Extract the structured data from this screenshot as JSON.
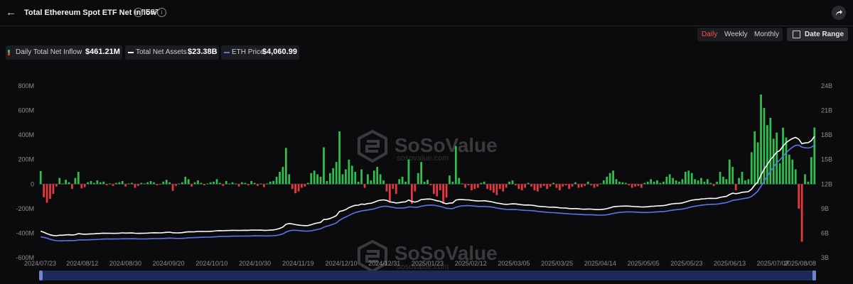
{
  "header": {
    "back_icon": "arrow-left-icon",
    "title": "Total Ethereum Spot ETF Net Inflow",
    "timezone": "EST",
    "info_icon": "info-icon",
    "share_icon": "share-icon"
  },
  "controls": {
    "periods": [
      "Daily",
      "Weekly",
      "Monthly"
    ],
    "active_period": "Daily",
    "date_range_label": "Date Range",
    "calendar_icon": "calendar-icon"
  },
  "legend": [
    {
      "label": "Daily Total Net Inflow",
      "value": "$461.21M"
    },
    {
      "label": "Total Net Assets",
      "value": "$23.38B"
    },
    {
      "label": "ETH Price",
      "value": "$4,060.99"
    }
  ],
  "colors": {
    "inflow_positive": "#2fbf4f",
    "inflow_negative": "#e8383d",
    "net_assets": "#ffffff",
    "eth_price": "#5b74e8",
    "active_tab": "#ff4d4f"
  },
  "chart_data": {
    "type": "bar",
    "title": "Total Ethereum Spot ETF Net Inflow",
    "x_ticks": [
      "2024/07/23",
      "2024/08/12",
      "2024/08/30",
      "2024/09/20",
      "2024/10/10",
      "2024/10/30",
      "2024/11/19",
      "2024/12/10",
      "2024/12/31",
      "2025/01/23",
      "2025/02/12",
      "2025/03/05",
      "2025/03/25",
      "2025/04/14",
      "2025/05/05",
      "2025/05/23",
      "2025/06/13",
      "2025/07/07",
      "2025/08/08"
    ],
    "y_left_ticks": [
      "800M",
      "600M",
      "400M",
      "200M",
      "0",
      "-200M",
      "-400M",
      "-600M"
    ],
    "y_left_range": [
      -600,
      800
    ],
    "y_left_unit": "M",
    "y_right_ticks": [
      "24B",
      "21B",
      "18B",
      "15B",
      "12B",
      "9B",
      "6B",
      "3B"
    ],
    "y_right_range": [
      3,
      24
    ],
    "y_right_unit": "B",
    "grid": false,
    "legend_position": "top-left",
    "watermark": "SoSoValue",
    "watermark_url": "sosovalue.com",
    "inflow_bars_millions": [
      106,
      -107,
      -152,
      -120,
      -80,
      -20,
      50,
      5,
      35,
      15,
      -40,
      50,
      100,
      -35,
      -25,
      15,
      25,
      10,
      30,
      15,
      20,
      -10,
      5,
      -15,
      10,
      15,
      25,
      -20,
      5,
      10,
      -30,
      -15,
      10,
      5,
      15,
      25,
      15,
      -10,
      -5,
      20,
      35,
      15,
      -55,
      -15,
      5,
      15,
      60,
      40,
      -20,
      15,
      30,
      10,
      -10,
      5,
      15,
      20,
      40,
      10,
      -15,
      25,
      5,
      15,
      5,
      -20,
      15,
      10,
      -10,
      25,
      10,
      -15,
      5,
      -25,
      5,
      20,
      25,
      60,
      100,
      140,
      295,
      80,
      -40,
      -75,
      -60,
      -30,
      -20,
      10,
      90,
      110,
      80,
      60,
      300,
      25,
      90,
      130,
      180,
      430,
      80,
      120,
      200,
      150,
      100,
      20,
      120,
      -30,
      80,
      30,
      110,
      140,
      80,
      30,
      -60,
      -150,
      -40,
      -80,
      40,
      60,
      20,
      200,
      -160,
      -60,
      90,
      180,
      20,
      35,
      -10,
      -80,
      -100,
      -50,
      -160,
      -110,
      70,
      20,
      310,
      50,
      5,
      -30,
      -10,
      -50,
      -40,
      -30,
      10,
      20,
      -40,
      -50,
      -70,
      -90,
      -40,
      -60,
      -30,
      20,
      30,
      -10,
      -40,
      -50,
      -30,
      10,
      -20,
      -50,
      -60,
      -30,
      -15,
      -40,
      -20,
      10,
      -30,
      -50,
      -20,
      -10,
      -40,
      -20,
      15,
      -30,
      -25,
      -15,
      20,
      -10,
      -30,
      -20,
      5,
      30,
      60,
      90,
      110,
      40,
      20,
      15,
      10,
      -10,
      -30,
      -20,
      -15,
      -30,
      10,
      20,
      40,
      20,
      30,
      10,
      20,
      60,
      80,
      50,
      30,
      20,
      40,
      100,
      110,
      90,
      40,
      30,
      50,
      20,
      40,
      10,
      -15,
      20,
      100,
      60,
      40,
      200,
      140,
      -50,
      50,
      100,
      30,
      40,
      260,
      430,
      340,
      730,
      620,
      480,
      540,
      370,
      420,
      170,
      460,
      380,
      240,
      200,
      120,
      -200,
      -470,
      80,
      20,
      220,
      461
    ]
  }
}
